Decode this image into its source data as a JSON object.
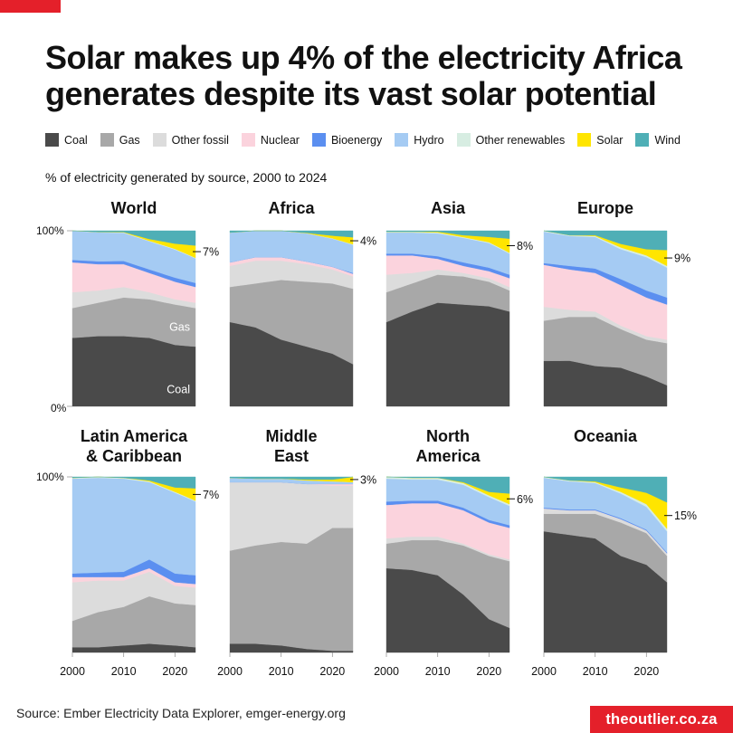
{
  "title": "Solar makes up 4% of the electricity Africa generates despite its vast solar potential",
  "subtitle": "% of electricity generated by source, 2000 to 2024",
  "source": "Source: Ember Electricity Data Explorer, emger-energy.org",
  "brand": "theoutlier.co.za",
  "legend": [
    {
      "name": "Coal",
      "color": "#4a4a4a"
    },
    {
      "name": "Gas",
      "color": "#a8a8a8"
    },
    {
      "name": "Other fossil",
      "color": "#dcdcdc"
    },
    {
      "name": "Nuclear",
      "color": "#fbd3dd"
    },
    {
      "name": "Bioenergy",
      "color": "#5b8ff0"
    },
    {
      "name": "Hydro",
      "color": "#a5cbf3"
    },
    {
      "name": "Other renewables",
      "color": "#d7ede2"
    },
    {
      "name": "Solar",
      "color": "#ffe500"
    },
    {
      "name": "Wind",
      "color": "#4fafb6"
    }
  ],
  "chart_data": {
    "type": "area",
    "stacking": "percent",
    "x_ticks": [
      2000,
      2010,
      2020
    ],
    "x_range": [
      2000,
      2024
    ],
    "y_range": [
      0,
      100
    ],
    "y_tick_labels": [
      "100%",
      "0%"
    ],
    "series_order": [
      "Coal",
      "Gas",
      "Other fossil",
      "Nuclear",
      "Bioenergy",
      "Hydro",
      "Other renewables",
      "Solar",
      "Wind"
    ],
    "key_years": [
      2000,
      2005,
      2010,
      2015,
      2020,
      2024
    ],
    "panels": [
      {
        "title": [
          "World"
        ],
        "annotation": "7%",
        "series_labels": [
          "Coal",
          "Gas"
        ],
        "shares": [
          [
            39,
            17,
            9,
            17,
            1.4,
            16.5,
            0.1,
            0,
            0
          ],
          [
            40,
            19,
            7,
            15,
            1.6,
            16.5,
            0.2,
            0,
            0.7
          ],
          [
            40,
            22,
            6,
            13,
            1.8,
            16,
            0.3,
            0.2,
            0.7
          ],
          [
            39,
            22,
            4,
            11,
            2,
            16,
            0.3,
            1,
            4.7
          ],
          [
            35,
            23,
            3,
            10,
            2.3,
            16,
            0.4,
            3,
            7.3
          ],
          [
            34,
            22,
            3,
            9,
            2.3,
            14,
            0.3,
            7,
            8.4
          ]
        ]
      },
      {
        "title": [
          "Africa"
        ],
        "annotation": "4%",
        "shares": [
          [
            48,
            20,
            12,
            2,
            0,
            17,
            0,
            0,
            1
          ],
          [
            45,
            25,
            13,
            2,
            0,
            15,
            0,
            0,
            0
          ],
          [
            38,
            34,
            11,
            2,
            0,
            15,
            0,
            0,
            0
          ],
          [
            34,
            37,
            10,
            1.5,
            0,
            16,
            0.1,
            0.2,
            1.2
          ],
          [
            30,
            40,
            8,
            1.5,
            0,
            16,
            0.2,
            1.5,
            2.8
          ],
          [
            24,
            43,
            7,
            1.5,
            0.5,
            16,
            0.3,
            4,
            3.7
          ]
        ]
      },
      {
        "title": [
          "Asia"
        ],
        "annotation": "8%",
        "shares": [
          [
            48,
            17,
            10,
            11,
            1,
            12,
            0.5,
            0,
            0.5
          ],
          [
            54,
            16,
            6,
            10,
            1,
            12,
            0.5,
            0,
            0.5
          ],
          [
            59,
            16,
            3,
            6,
            1.5,
            13,
            0.5,
            0.5,
            0.5
          ],
          [
            58,
            16,
            2,
            4,
            2,
            14,
            0.4,
            1.1,
            2.5
          ],
          [
            57,
            14,
            2,
            4,
            2,
            14,
            0.5,
            3,
            3.5
          ],
          [
            54,
            12,
            2,
            5,
            2,
            12,
            0.5,
            8,
            4.5
          ]
        ]
      },
      {
        "title": [
          "Europe"
        ],
        "annotation": "9%",
        "shares": [
          [
            26,
            23,
            8,
            24,
            1,
            18,
            0.5,
            0,
            0
          ],
          [
            26,
            25,
            4,
            23,
            2,
            17,
            0.5,
            0,
            2.5
          ],
          [
            23,
            28,
            3,
            22,
            2.5,
            18,
            0.5,
            0.5,
            2.5
          ],
          [
            22,
            22,
            2,
            23,
            3.5,
            17,
            1,
            2,
            7.5
          ],
          [
            17,
            21,
            2,
            22,
            4,
            19,
            1,
            3.5,
            10.5
          ],
          [
            12,
            24,
            2,
            20,
            4,
            17,
            1,
            9,
            11
          ]
        ]
      },
      {
        "title": [
          "Latin America",
          "& Caribbean"
        ],
        "annotation": "7%",
        "shares": [
          [
            3,
            15,
            22,
            3,
            2,
            54,
            0.5,
            0,
            0.5
          ],
          [
            3,
            20,
            18,
            2,
            2.5,
            54,
            0.5,
            0,
            0
          ],
          [
            4,
            22,
            15,
            2,
            3,
            53,
            0.5,
            0,
            0.5
          ],
          [
            5,
            27,
            14,
            2,
            5,
            44,
            0.5,
            0.5,
            2
          ],
          [
            4,
            24,
            10,
            2,
            5,
            46,
            0.5,
            2.5,
            6
          ],
          [
            3,
            24,
            10,
            2,
            5,
            42,
            0.5,
            7,
            6.5
          ]
        ]
      },
      {
        "title": [
          "Middle",
          "East"
        ],
        "annotation": "3%",
        "shares": [
          [
            5,
            53,
            39,
            0,
            0,
            2.5,
            0,
            0,
            0.5
          ],
          [
            5,
            56,
            36,
            0,
            0,
            2,
            0,
            0,
            1
          ],
          [
            4,
            59,
            34,
            0,
            0,
            2,
            0,
            0,
            1
          ],
          [
            2,
            60,
            34,
            0,
            0,
            2,
            0,
            0.5,
            1.5
          ],
          [
            1,
            70,
            24,
            1,
            0,
            1.5,
            0,
            1,
            1.5
          ],
          [
            1,
            70,
            24,
            1,
            0,
            1,
            0,
            3,
            0
          ]
        ]
      },
      {
        "title": [
          "North",
          "America"
        ],
        "annotation": "6%",
        "shares": [
          [
            48,
            14,
            3,
            19,
            2,
            13,
            1,
            0,
            0
          ],
          [
            47,
            17,
            2,
            19,
            1.5,
            12,
            1,
            0,
            0.5
          ],
          [
            44,
            20,
            2,
            19,
            1.5,
            12,
            1,
            0,
            0.5
          ],
          [
            33,
            28,
            1,
            19,
            1.5,
            13,
            1,
            0.5,
            3
          ],
          [
            19,
            36,
            1,
            18,
            1.5,
            13,
            1,
            2,
            8.5
          ],
          [
            14,
            38,
            1,
            18,
            1.5,
            11,
            1,
            6,
            9.5
          ]
        ]
      },
      {
        "title": [
          "Oceania"
        ],
        "annotation": "15%",
        "shares": [
          [
            69,
            10,
            3,
            0,
            0.5,
            17,
            0.5,
            0,
            0
          ],
          [
            67,
            12,
            2,
            0,
            0.5,
            16,
            0.5,
            0,
            2
          ],
          [
            65,
            14,
            2,
            0,
            0.5,
            15,
            0.5,
            0.5,
            2.5
          ],
          [
            55,
            19,
            2,
            0,
            0.5,
            14,
            1,
            2.5,
            6
          ],
          [
            50,
            18,
            1.5,
            0,
            0.5,
            13,
            1.5,
            6.5,
            9
          ],
          [
            40,
            15,
            1.5,
            0,
            0.5,
            12,
            1.5,
            15,
            14.5
          ]
        ]
      }
    ]
  }
}
